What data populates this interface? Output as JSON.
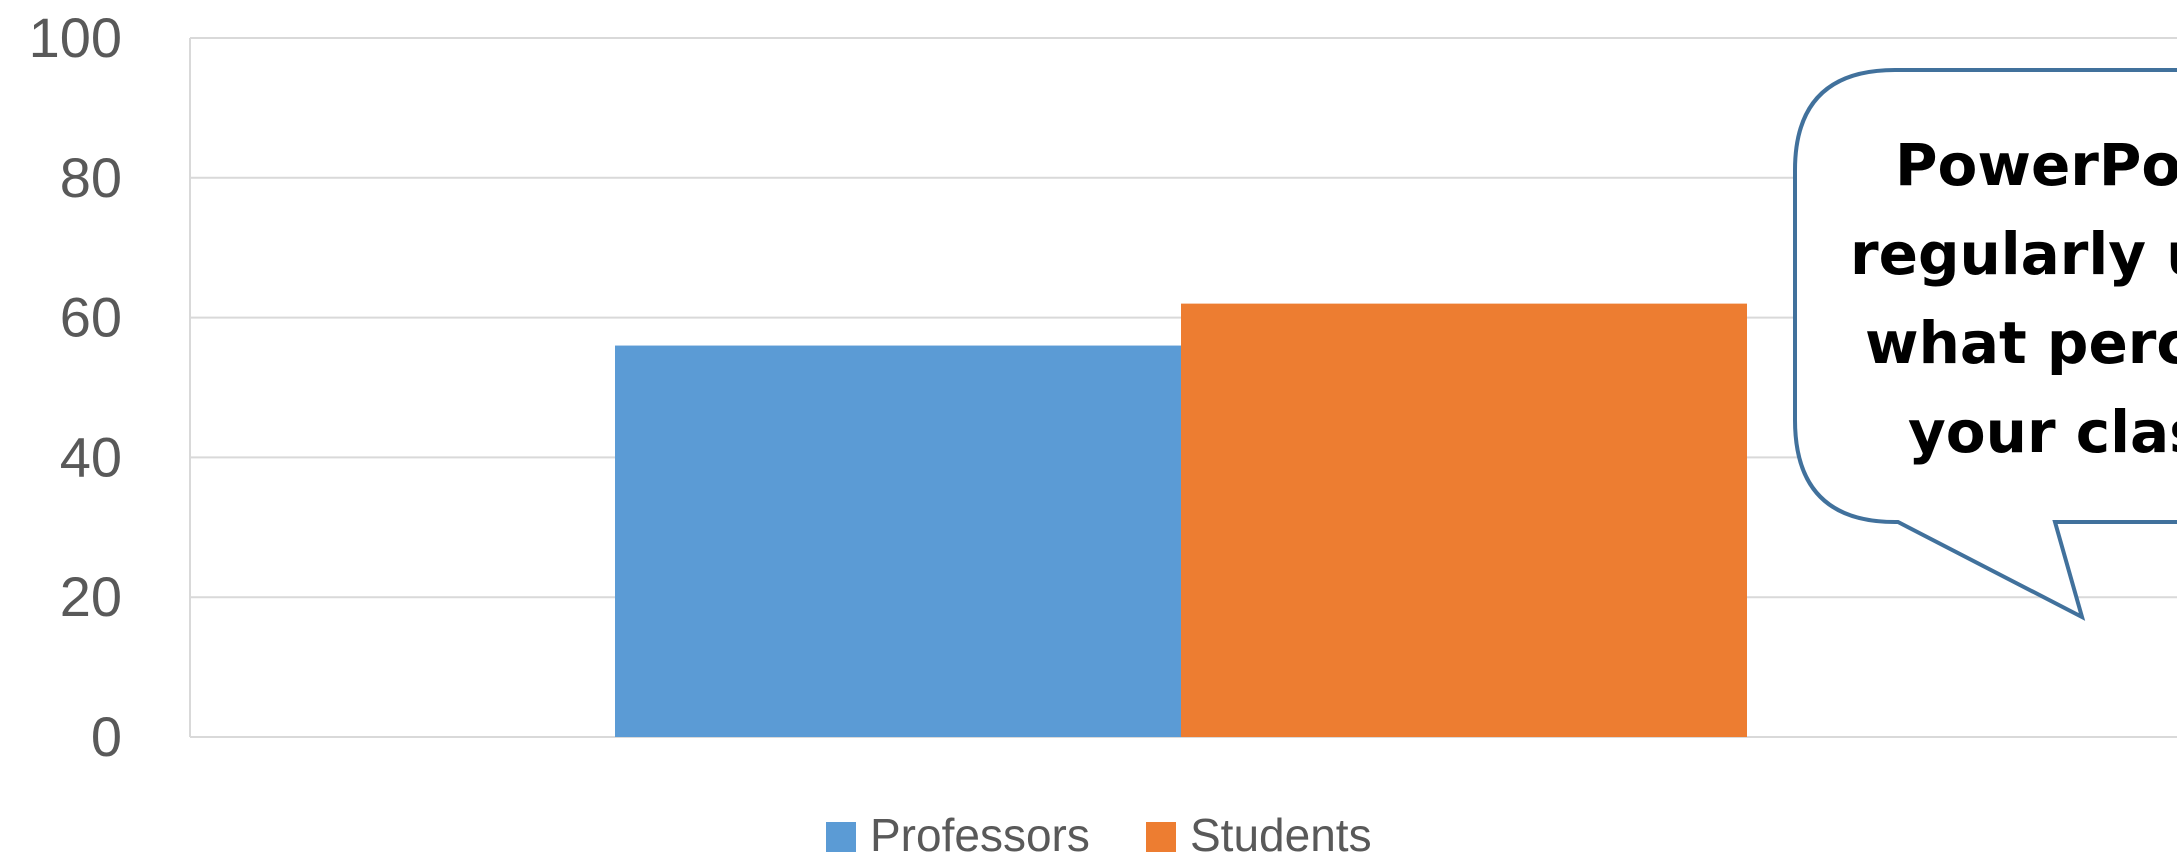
{
  "chart_data": {
    "type": "bar",
    "categories": [
      ""
    ],
    "series": [
      {
        "name": "Professors",
        "values": [
          56
        ],
        "color": "#5b9bd5"
      },
      {
        "name": "Students",
        "values": [
          62
        ],
        "color": "#ed7d31"
      }
    ],
    "ylim": [
      0,
      100
    ],
    "yticks": [
      "0",
      "20",
      "40",
      "60",
      "80",
      "100"
    ],
    "grid": true,
    "legend": "bottom",
    "annotation": {
      "lines": [
        "PowerPoi",
        "regularly u",
        "what perce",
        "your clas"
      ],
      "border_color": "#41719c"
    }
  }
}
